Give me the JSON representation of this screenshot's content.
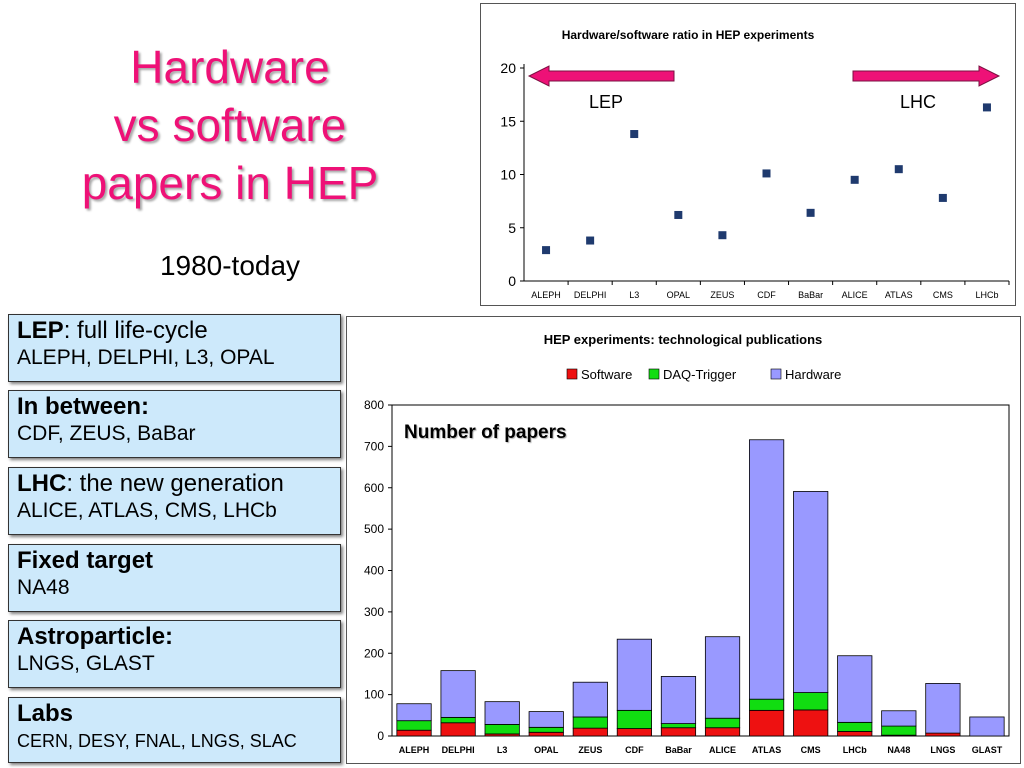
{
  "slide": {
    "title_lines": [
      "Hardware",
      "vs software",
      "papers in HEP"
    ],
    "subtitle": "1980-today",
    "colors": {
      "title": "#ee1177",
      "box_bg": "#cde9fb",
      "arrow": "#ee1177",
      "marker": "#1f3a6e",
      "software": "#ee1111",
      "daq": "#11dd11",
      "hardware": "#9999ff"
    }
  },
  "categories": [
    {
      "bold": "LEP",
      "rest": ": full life-cycle",
      "detail": "ALEPH, DELPHI, L3, OPAL"
    },
    {
      "bold": "In between:",
      "rest": "",
      "detail": "CDF, ZEUS, BaBar"
    },
    {
      "bold": "LHC",
      "rest": ": the new generation",
      "detail": "ALICE, ATLAS, CMS, LHCb"
    },
    {
      "bold": "Fixed target",
      "rest": "",
      "detail": "NA48"
    },
    {
      "bold": "Astroparticle:",
      "rest": "",
      "detail": "LNGS, GLAST"
    },
    {
      "bold": "Labs",
      "rest": "",
      "detail": "CERN, DESY, FNAL, LNGS, SLAC"
    }
  ],
  "chart_data": [
    {
      "type": "scatter",
      "title": "Hardware/software ratio in HEP experiments",
      "categories": [
        "ALEPH",
        "DELPHI",
        "L3",
        "OPAL",
        "ZEUS",
        "CDF",
        "BaBar",
        "ALICE",
        "ATLAS",
        "CMS",
        "LHCb"
      ],
      "values": [
        2.9,
        3.8,
        13.8,
        6.2,
        4.3,
        10.1,
        6.4,
        9.5,
        10.5,
        7.8,
        16.3
      ],
      "ylim": [
        0,
        20
      ],
      "yticks": [
        0,
        5,
        10,
        15,
        20
      ],
      "grid": false,
      "annotations": [
        {
          "text": "LEP",
          "arrow": "left"
        },
        {
          "text": "LHC",
          "arrow": "right"
        }
      ]
    },
    {
      "type": "bar",
      "stacked": true,
      "title": "HEP experiments: technological publications",
      "inner_label": "Number of papers",
      "categories": [
        "ALEPH",
        "DELPHI",
        "L3",
        "OPAL",
        "ZEUS",
        "CDF",
        "BaBar",
        "ALICE",
        "ATLAS",
        "CMS",
        "LHCb",
        "NA48",
        "LNGS",
        "GLAST"
      ],
      "series": [
        {
          "name": "Software",
          "color": "#ee1111",
          "values": [
            14,
            32,
            5,
            9,
            19,
            18,
            20,
            20,
            62,
            63,
            11,
            2,
            7,
            0
          ]
        },
        {
          "name": "DAQ-Trigger",
          "color": "#11dd11",
          "values": [
            23,
            13,
            23,
            12,
            27,
            44,
            10,
            23,
            27,
            42,
            22,
            22,
            0,
            0
          ]
        },
        {
          "name": "Hardware",
          "color": "#9999ff",
          "values": [
            41,
            113,
            55,
            38,
            84,
            172,
            114,
            197,
            627,
            486,
            161,
            37,
            120,
            46
          ]
        }
      ],
      "ylim": [
        0,
        800
      ],
      "yticks": [
        0,
        100,
        200,
        300,
        400,
        500,
        600,
        700,
        800
      ],
      "legend": "top",
      "grid": false
    }
  ]
}
